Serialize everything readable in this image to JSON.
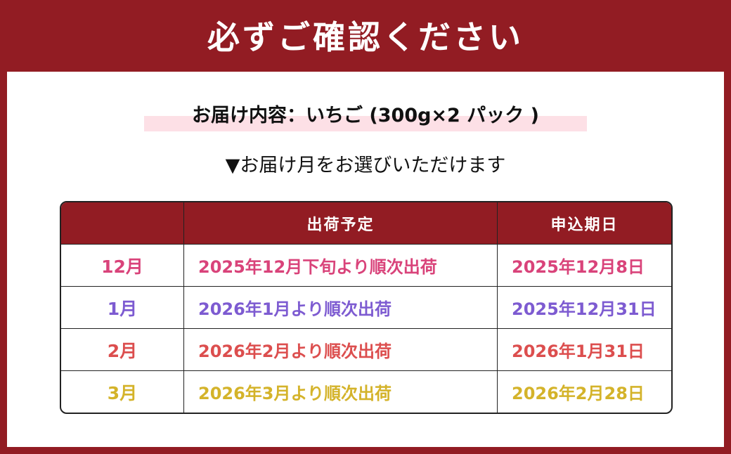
{
  "title": "必ずご確認ください",
  "contents_label": "お届け内容：いちご (300g×2 パック )",
  "select_prompt": "▼お届け月をお選びいただけます",
  "table": {
    "headers": [
      "",
      "出荷予定",
      "申込期日"
    ],
    "rows": [
      {
        "month": "12月",
        "shipping": "2025年12月下旬より順次出荷",
        "deadline": "2025年12月8日",
        "color": "#d9437a"
      },
      {
        "month": "1月",
        "shipping": "2026年1月より順次出荷",
        "deadline": "2025年12月31日",
        "color": "#7d5bd1"
      },
      {
        "month": "2月",
        "shipping": "2026年2月より順次出荷",
        "deadline": "2026年1月31日",
        "color": "#dc4e4e"
      },
      {
        "month": "3月",
        "shipping": "2026年3月より順次出荷",
        "deadline": "2026年2月28日",
        "color": "#d4b32a"
      }
    ]
  },
  "colors": {
    "brand": "#921c23",
    "highlight": "#fde0e6"
  }
}
